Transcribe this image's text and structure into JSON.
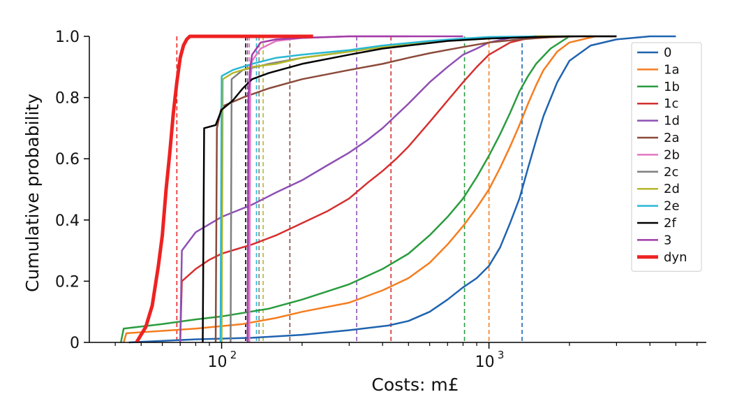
{
  "chart_data": {
    "type": "line",
    "title": "",
    "xlabel": "Costs: m£",
    "ylabel": "Cumulative probability",
    "x_scale": "log",
    "xlim": [
      32,
      6500
    ],
    "ylim": [
      0,
      1.0
    ],
    "grid": false,
    "legend_position": "right",
    "yticks": [
      {
        "value": 0.0,
        "label": "0"
      },
      {
        "value": 0.2,
        "label": "0.2"
      },
      {
        "value": 0.4,
        "label": "0.4"
      },
      {
        "value": 0.6,
        "label": "0.6"
      },
      {
        "value": 0.8,
        "label": "0.8"
      },
      {
        "value": 1.0,
        "label": "1.0"
      }
    ],
    "xticks_major": [
      {
        "value": 100,
        "base": "10",
        "exp": "2"
      },
      {
        "value": 1000,
        "base": "10",
        "exp": "3"
      }
    ],
    "xticks_minor": [
      40,
      50,
      60,
      70,
      80,
      90,
      200,
      300,
      400,
      500,
      600,
      700,
      800,
      900,
      2000,
      3000,
      4000,
      5000,
      6000
    ],
    "series": [
      {
        "name": "0",
        "color": "#1f63b0",
        "width": 2.5,
        "x": [
          45,
          80,
          130,
          200,
          300,
          420,
          500,
          600,
          700,
          800,
          900,
          1000,
          1100,
          1200,
          1300,
          1400,
          1500,
          1600,
          1800,
          2000,
          2400,
          3000,
          4000,
          5000
        ],
        "y": [
          0.0,
          0.01,
          0.015,
          0.025,
          0.04,
          0.055,
          0.07,
          0.1,
          0.14,
          0.18,
          0.21,
          0.25,
          0.31,
          0.39,
          0.47,
          0.57,
          0.66,
          0.74,
          0.85,
          0.92,
          0.97,
          0.99,
          1.0,
          1.0
        ],
        "median_line": 1330
      },
      {
        "name": "1a",
        "color": "#f57d1f",
        "width": 2.5,
        "x": [
          43,
          44,
          80,
          120,
          160,
          200,
          300,
          400,
          500,
          600,
          700,
          800,
          900,
          1000,
          1100,
          1200,
          1300,
          1400,
          1500,
          1600,
          1800,
          2000,
          2500
        ],
        "y": [
          0.0,
          0.03,
          0.045,
          0.06,
          0.08,
          0.1,
          0.13,
          0.17,
          0.21,
          0.26,
          0.32,
          0.38,
          0.44,
          0.5,
          0.57,
          0.64,
          0.71,
          0.78,
          0.84,
          0.89,
          0.95,
          0.98,
          1.0
        ],
        "median_line": 1000
      },
      {
        "name": "1b",
        "color": "#2a9c3e",
        "width": 2.5,
        "x": [
          42,
          43,
          60,
          80,
          100,
          150,
          200,
          300,
          400,
          500,
          600,
          700,
          800,
          900,
          1000,
          1100,
          1200,
          1300,
          1400,
          1500,
          1700,
          2000
        ],
        "y": [
          0.0,
          0.045,
          0.06,
          0.075,
          0.085,
          0.11,
          0.14,
          0.19,
          0.24,
          0.29,
          0.35,
          0.41,
          0.47,
          0.54,
          0.61,
          0.68,
          0.75,
          0.82,
          0.87,
          0.91,
          0.96,
          1.0
        ],
        "median_line": 810
      },
      {
        "name": "1c",
        "color": "#d62f2f",
        "width": 2.5,
        "x": [
          70,
          71,
          80,
          90,
          100,
          130,
          160,
          200,
          250,
          300,
          350,
          400,
          450,
          500,
          600,
          700,
          800,
          900,
          1000,
          1200,
          1500
        ],
        "y": [
          0.0,
          0.2,
          0.24,
          0.27,
          0.29,
          0.32,
          0.35,
          0.39,
          0.43,
          0.47,
          0.52,
          0.56,
          0.6,
          0.64,
          0.72,
          0.79,
          0.85,
          0.9,
          0.94,
          0.98,
          1.0
        ],
        "median_line": 430
      },
      {
        "name": "1d",
        "color": "#8e4fb3",
        "width": 2.5,
        "x": [
          70,
          71,
          80,
          100,
          130,
          160,
          200,
          250,
          300,
          350,
          400,
          500,
          600,
          700,
          800,
          900,
          1000,
          1200,
          1500
        ],
        "y": [
          0.0,
          0.3,
          0.36,
          0.41,
          0.45,
          0.49,
          0.53,
          0.58,
          0.62,
          0.66,
          0.7,
          0.78,
          0.85,
          0.9,
          0.94,
          0.96,
          0.98,
          0.995,
          1.0
        ],
        "median_line": 320
      },
      {
        "name": "2a",
        "color": "#8b4a3a",
        "width": 2.5,
        "x": [
          95,
          96,
          100,
          120,
          150,
          200,
          300,
          400,
          500,
          600,
          800,
          1000,
          1300,
          1700,
          2200,
          3000
        ],
        "y": [
          0.0,
          0.7,
          0.77,
          0.8,
          0.83,
          0.86,
          0.89,
          0.91,
          0.93,
          0.945,
          0.965,
          0.98,
          0.99,
          0.997,
          1.0,
          1.0
        ],
        "median_line": 180
      },
      {
        "name": "2b",
        "color": "#e377c2",
        "width": 2.5,
        "x": [
          127,
          128,
          130,
          140,
          160,
          200,
          300,
          500
        ],
        "y": [
          0.0,
          0.85,
          0.92,
          0.96,
          0.985,
          0.995,
          1.0,
          1.0
        ],
        "median_line": 127
      },
      {
        "name": "2c",
        "color": "#7f7f7f",
        "width": 2.5,
        "x": [
          108,
          109,
          120,
          150,
          200,
          300,
          400,
          600,
          800,
          1000,
          1500,
          2000
        ],
        "y": [
          0.0,
          0.86,
          0.89,
          0.91,
          0.93,
          0.95,
          0.965,
          0.98,
          0.99,
          0.995,
          1.0,
          1.0
        ],
        "median_line": 138
      },
      {
        "name": "2d",
        "color": "#b5b82a",
        "width": 2.5,
        "x": [
          100,
          101,
          110,
          130,
          160,
          200,
          300,
          400,
          600,
          800,
          1000,
          1500,
          2000
        ],
        "y": [
          0.0,
          0.86,
          0.88,
          0.9,
          0.91,
          0.93,
          0.95,
          0.965,
          0.98,
          0.99,
          0.995,
          1.0,
          1.0
        ],
        "median_line": 143
      },
      {
        "name": "2e",
        "color": "#2ab8d4",
        "width": 2.5,
        "x": [
          99,
          100,
          110,
          130,
          160,
          200,
          300,
          400,
          600,
          800,
          1000,
          1500
        ],
        "y": [
          0.0,
          0.87,
          0.89,
          0.91,
          0.93,
          0.94,
          0.955,
          0.97,
          0.985,
          0.993,
          0.998,
          1.0
        ],
        "median_line": 135
      },
      {
        "name": "2f",
        "color": "#000000",
        "width": 2.5,
        "x": [
          85,
          86,
          95,
          100,
          110,
          120,
          130,
          150,
          200,
          300,
          400,
          500,
          700,
          1000,
          1500,
          2000,
          3000
        ],
        "y": [
          0.0,
          0.7,
          0.71,
          0.76,
          0.79,
          0.83,
          0.86,
          0.88,
          0.91,
          0.94,
          0.96,
          0.97,
          0.985,
          0.993,
          0.998,
          1.0,
          1.0
        ],
        "median_line": 123
      },
      {
        "name": "3",
        "color": "#a23aa8",
        "width": 2.5,
        "x": [
          125,
          126,
          128,
          130,
          135,
          140,
          160,
          200,
          300,
          800
        ],
        "y": [
          0.0,
          0.8,
          0.9,
          0.94,
          0.96,
          0.98,
          0.99,
          0.995,
          1.0,
          1.0
        ],
        "median_line": 125
      },
      {
        "name": "dyn",
        "color": "#ee2222",
        "width": 5,
        "x": [
          48,
          52,
          55,
          58,
          60,
          62,
          64,
          66,
          68,
          70,
          72,
          74,
          76,
          80,
          100,
          150,
          220
        ],
        "y": [
          0.0,
          0.05,
          0.12,
          0.25,
          0.35,
          0.5,
          0.62,
          0.75,
          0.85,
          0.93,
          0.97,
          0.99,
          1.0,
          1.0,
          1.0,
          1.0,
          1.0
        ],
        "median_line": 68
      }
    ]
  }
}
